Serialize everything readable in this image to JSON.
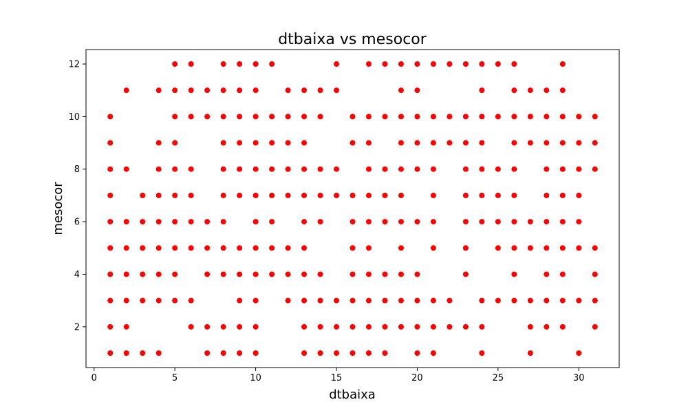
{
  "chart_data": {
    "type": "scatter",
    "title": "dtbaixa vs mesocor",
    "xlabel": "dtbaixa",
    "ylabel": "mesocor",
    "xlim": [
      -0.5,
      32.5
    ],
    "ylim": [
      0.45,
      12.55
    ],
    "xticks": [
      0,
      5,
      10,
      15,
      20,
      25,
      30
    ],
    "yticks": [
      2,
      4,
      6,
      8,
      10,
      12
    ],
    "grid": false,
    "legend": "none",
    "marker_color": "#ff0000",
    "series": [
      {
        "points_by_x": [
          {
            "x": 1,
            "y": [
              1,
              2,
              3,
              4,
              5,
              6,
              7,
              8,
              9,
              10
            ]
          },
          {
            "x": 2,
            "y": [
              1,
              2,
              3,
              4,
              5,
              6,
              8,
              11
            ]
          },
          {
            "x": 3,
            "y": [
              1,
              3,
              4,
              5,
              6,
              7
            ]
          },
          {
            "x": 4,
            "y": [
              1,
              3,
              4,
              5,
              6,
              7,
              8,
              9,
              11
            ]
          },
          {
            "x": 5,
            "y": [
              3,
              4,
              5,
              6,
              7,
              8,
              9,
              10,
              11,
              12
            ]
          },
          {
            "x": 6,
            "y": [
              2,
              3,
              5,
              6,
              7,
              8,
              10,
              11,
              12
            ]
          },
          {
            "x": 7,
            "y": [
              1,
              2,
              4,
              5,
              6,
              10,
              11
            ]
          },
          {
            "x": 8,
            "y": [
              1,
              2,
              4,
              5,
              6,
              7,
              8,
              9,
              10,
              11,
              12
            ]
          },
          {
            "x": 9,
            "y": [
              1,
              2,
              3,
              4,
              5,
              7,
              8,
              9,
              10,
              11,
              12
            ]
          },
          {
            "x": 10,
            "y": [
              1,
              2,
              3,
              4,
              5,
              6,
              7,
              8,
              9,
              10,
              11,
              12
            ]
          },
          {
            "x": 11,
            "y": [
              4,
              5,
              6,
              7,
              8,
              9,
              10,
              12
            ]
          },
          {
            "x": 12,
            "y": [
              3,
              4,
              5,
              7,
              8,
              9,
              10,
              11
            ]
          },
          {
            "x": 13,
            "y": [
              1,
              2,
              3,
              4,
              5,
              6,
              7,
              8,
              9,
              10,
              11
            ]
          },
          {
            "x": 14,
            "y": [
              1,
              2,
              3,
              4,
              6,
              7,
              8,
              10,
              11
            ]
          },
          {
            "x": 15,
            "y": [
              1,
              2,
              3,
              7,
              8,
              11,
              12
            ]
          },
          {
            "x": 16,
            "y": [
              1,
              2,
              3,
              4,
              5,
              6,
              7,
              9,
              10
            ]
          },
          {
            "x": 17,
            "y": [
              1,
              2,
              3,
              4,
              5,
              6,
              7,
              8,
              9,
              10,
              12
            ]
          },
          {
            "x": 18,
            "y": [
              1,
              2,
              3,
              4,
              6,
              7,
              8,
              10,
              12
            ]
          },
          {
            "x": 19,
            "y": [
              2,
              3,
              4,
              5,
              6,
              7,
              8,
              9,
              10,
              11,
              12
            ]
          },
          {
            "x": 20,
            "y": [
              1,
              2,
              3,
              4,
              6,
              8,
              9,
              10,
              11,
              12
            ]
          },
          {
            "x": 21,
            "y": [
              1,
              2,
              3,
              5,
              6,
              7,
              8,
              9,
              10,
              12
            ]
          },
          {
            "x": 22,
            "y": [
              2,
              3,
              9,
              10,
              12
            ]
          },
          {
            "x": 23,
            "y": [
              2,
              4,
              5,
              6,
              7,
              8,
              9,
              10,
              12
            ]
          },
          {
            "x": 24,
            "y": [
              1,
              2,
              3,
              6,
              7,
              8,
              9,
              10,
              11,
              12
            ]
          },
          {
            "x": 25,
            "y": [
              3,
              5,
              6,
              7,
              8,
              10,
              12
            ]
          },
          {
            "x": 26,
            "y": [
              3,
              4,
              5,
              6,
              7,
              8,
              9,
              10,
              11,
              12
            ]
          },
          {
            "x": 27,
            "y": [
              1,
              2,
              3,
              5,
              6,
              9,
              10,
              11
            ]
          },
          {
            "x": 28,
            "y": [
              2,
              3,
              4,
              5,
              6,
              7,
              8,
              9,
              10,
              11
            ]
          },
          {
            "x": 29,
            "y": [
              2,
              3,
              4,
              5,
              6,
              7,
              8,
              9,
              10,
              11,
              12
            ]
          },
          {
            "x": 30,
            "y": [
              1,
              3,
              5,
              6,
              7,
              8,
              9,
              10
            ]
          },
          {
            "x": 31,
            "y": [
              2,
              3,
              4,
              5,
              8,
              9,
              10
            ]
          }
        ]
      }
    ]
  }
}
